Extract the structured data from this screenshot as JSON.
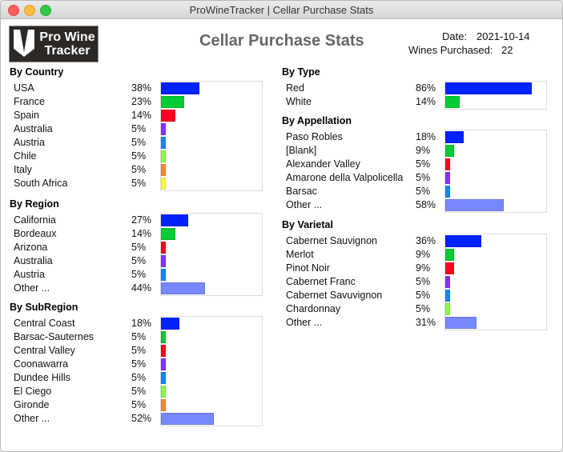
{
  "window": {
    "title": "ProWineTracker | Cellar Purchase Stats"
  },
  "logo": {
    "line1": "Pro Wine",
    "line2": "Tracker"
  },
  "header": {
    "title": "Cellar Purchase Stats",
    "date_label": "Date:",
    "date_value": "2021-10-14",
    "wines_label": "Wines Purchased:",
    "wines_value": "22"
  },
  "colors": {
    "bar1": "#0022ff",
    "bar2": "#00cc33",
    "bar3": "#ff0022",
    "bar4": "#8833ff",
    "bar5": "#1188ff",
    "bar6": "#88ff44",
    "bar7": "#ff8833",
    "bar8": "#ffff44",
    "other": "#7788ff"
  },
  "sections": [
    {
      "id": "country",
      "title": "By Country",
      "items": [
        {
          "label": "USA",
          "pct": "38%",
          "value": 38
        },
        {
          "label": "France",
          "pct": "23%",
          "value": 23
        },
        {
          "label": "Spain",
          "pct": "14%",
          "value": 14
        },
        {
          "label": "Australia",
          "pct": "5%",
          "value": 5
        },
        {
          "label": "Austria",
          "pct": "5%",
          "value": 5
        },
        {
          "label": "Chile",
          "pct": "5%",
          "value": 5
        },
        {
          "label": "Italy",
          "pct": "5%",
          "value": 5
        },
        {
          "label": "South Africa",
          "pct": "5%",
          "value": 5
        }
      ]
    },
    {
      "id": "region",
      "title": "By Region",
      "items": [
        {
          "label": "California",
          "pct": "27%",
          "value": 27
        },
        {
          "label": "Bordeaux",
          "pct": "14%",
          "value": 14
        },
        {
          "label": "Arizona",
          "pct": "5%",
          "value": 5
        },
        {
          "label": "Australia",
          "pct": "5%",
          "value": 5
        },
        {
          "label": "Austria",
          "pct": "5%",
          "value": 5
        },
        {
          "label": "Other ...",
          "pct": "44%",
          "value": 44,
          "other": true
        }
      ]
    },
    {
      "id": "subregion",
      "title": "By SubRegion",
      "items": [
        {
          "label": "Central Coast",
          "pct": "18%",
          "value": 18
        },
        {
          "label": "Barsac-Sauternes",
          "pct": "5%",
          "value": 5
        },
        {
          "label": "Central Valley",
          "pct": "5%",
          "value": 5
        },
        {
          "label": "Coonawarra",
          "pct": "5%",
          "value": 5
        },
        {
          "label": "Dundee Hills",
          "pct": "5%",
          "value": 5
        },
        {
          "label": "El Ciego",
          "pct": "5%",
          "value": 5
        },
        {
          "label": "Gironde",
          "pct": "5%",
          "value": 5
        },
        {
          "label": "Other ...",
          "pct": "52%",
          "value": 52,
          "other": true
        }
      ]
    },
    {
      "id": "type",
      "title": "By Type",
      "items": [
        {
          "label": "Red",
          "pct": "86%",
          "value": 86
        },
        {
          "label": "White",
          "pct": "14%",
          "value": 14
        }
      ]
    },
    {
      "id": "appellation",
      "title": "By Appellation",
      "items": [
        {
          "label": "Paso Robles",
          "pct": "18%",
          "value": 18
        },
        {
          "label": "[Blank]",
          "pct": "9%",
          "value": 9
        },
        {
          "label": "Alexander Valley",
          "pct": "5%",
          "value": 5
        },
        {
          "label": "Amarone della Valpolicella",
          "pct": "5%",
          "value": 5
        },
        {
          "label": "Barsac",
          "pct": "5%",
          "value": 5
        },
        {
          "label": "Other ...",
          "pct": "58%",
          "value": 58,
          "other": true
        }
      ]
    },
    {
      "id": "varietal",
      "title": "By Varietal",
      "items": [
        {
          "label": "Cabernet Sauvignon",
          "pct": "36%",
          "value": 36
        },
        {
          "label": "Merlot",
          "pct": "9%",
          "value": 9
        },
        {
          "label": "Pinot Noir",
          "pct": "9%",
          "value": 9
        },
        {
          "label": "Cabernet Franc",
          "pct": "5%",
          "value": 5
        },
        {
          "label": "Cabernet Savuvignon",
          "pct": "5%",
          "value": 5
        },
        {
          "label": "Chardonnay",
          "pct": "5%",
          "value": 5
        },
        {
          "label": "Other ...",
          "pct": "31%",
          "value": 31,
          "other": true
        }
      ]
    }
  ]
}
